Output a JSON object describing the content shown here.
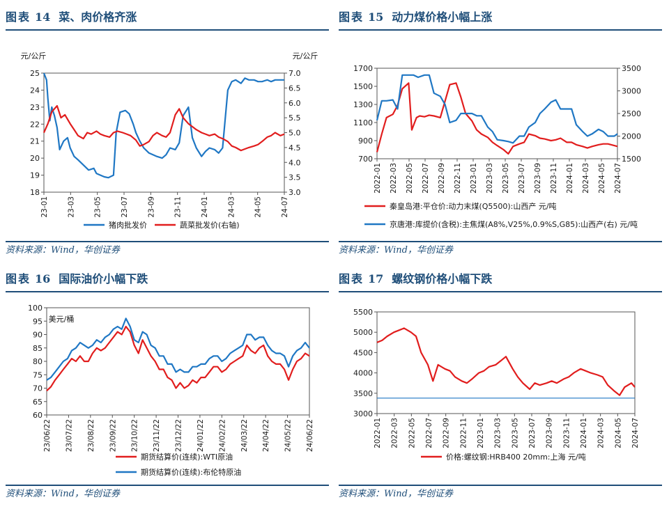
{
  "figures": [
    {
      "label": "图表",
      "number": "14",
      "title": "菜、肉价格齐涨",
      "source": "资料来源：Wind，华创证券",
      "chart_data": {
        "type": "line",
        "unit_left": "元/公斤",
        "unit_right": "元/公斤",
        "left_ticks": [
          "25",
          "24",
          "23",
          "22",
          "21",
          "20",
          "19",
          "18"
        ],
        "right_ticks": [
          "7.0",
          "6.5",
          "6.0",
          "5.5",
          "5.0",
          "4.5",
          "4.0",
          "3.5",
          "3.0"
        ],
        "x_ticks": [
          "23-01",
          "23-03",
          "23-05",
          "23-07",
          "23-09",
          "23-11",
          "24-01",
          "24-03",
          "24-05",
          "24-07"
        ],
        "ylim_left": [
          18,
          25
        ],
        "ylim_right": [
          3.0,
          7.0
        ],
        "series": [
          {
            "name": "猪肉批发价",
            "axis": "left",
            "color": "#1f77c4",
            "x": [
              0,
              0.2,
              0.3,
              0.45,
              0.6,
              0.8,
              1,
              1.2,
              1.5,
              1.8,
              2,
              2.3,
              2.6,
              3,
              3.4,
              3.8,
              4,
              4.3,
              4.6,
              4.9,
              5.3,
              5.5,
              5.8,
              6.2,
              6.5,
              6.8,
              7,
              7.3,
              7.6,
              8,
              8.3,
              8.6,
              9,
              9.3,
              9.6,
              10,
              10.3,
              10.6,
              11,
              11.3,
              11.6,
              12,
              12.3,
              12.6,
              13,
              13.3,
              13.6,
              14,
              14.3,
              14.6,
              15,
              15.3,
              15.6,
              16,
              16.3,
              16.6,
              17,
              17.3,
              17.6,
              18,
              18.3
            ],
            "y": [
              25.0,
              24.6,
              23.5,
              22.2,
              23.0,
              22.5,
              21.8,
              20.5,
              21.0,
              21.2,
              20.6,
              20.1,
              19.9,
              19.6,
              19.3,
              19.4,
              19.1,
              19.0,
              18.9,
              18.85,
              19.0,
              21.5,
              22.7,
              22.8,
              22.6,
              22.0,
              21.5,
              21.0,
              20.6,
              20.3,
              20.2,
              20.1,
              20.0,
              20.2,
              20.6,
              20.5,
              20.9,
              22.5,
              23.0,
              21.2,
              20.6,
              20.1,
              20.4,
              20.6,
              20.5,
              20.3,
              20.6,
              24.0,
              24.5,
              24.6,
              24.4,
              24.7,
              24.6,
              24.6,
              24.5,
              24.5,
              24.6,
              24.5,
              24.6,
              24.6,
              24.6
            ]
          },
          {
            "name": "蔬菜批发价(右轴)",
            "axis": "right",
            "color": "#e11d1d",
            "x": [
              0,
              0.3,
              0.6,
              1,
              1.3,
              1.6,
              2,
              2.3,
              2.6,
              3,
              3.3,
              3.6,
              4,
              4.3,
              4.6,
              5,
              5.3,
              5.6,
              6,
              6.3,
              6.6,
              7,
              7.3,
              7.6,
              8,
              8.3,
              8.6,
              9,
              9.3,
              9.6,
              10,
              10.3,
              10.6,
              11,
              11.3,
              11.6,
              12,
              12.3,
              12.6,
              13,
              13.3,
              13.6,
              14,
              14.3,
              14.6,
              15,
              15.3,
              15.6,
              16,
              16.3,
              16.6,
              17,
              17.3,
              17.6,
              18,
              18.3
            ],
            "y": [
              5.0,
              5.3,
              5.7,
              5.9,
              5.5,
              5.6,
              5.3,
              5.1,
              4.9,
              4.8,
              5.0,
              4.95,
              5.05,
              4.95,
              4.9,
              4.85,
              5.0,
              5.05,
              5.0,
              4.95,
              4.9,
              4.75,
              4.55,
              4.6,
              4.7,
              4.9,
              5.0,
              4.9,
              4.85,
              5.0,
              5.6,
              5.8,
              5.5,
              5.3,
              5.2,
              5.1,
              5.0,
              4.95,
              4.9,
              4.95,
              4.85,
              4.8,
              4.7,
              4.55,
              4.5,
              4.4,
              4.45,
              4.5,
              4.55,
              4.6,
              4.7,
              4.85,
              4.9,
              5.0,
              4.9,
              4.95
            ]
          }
        ]
      }
    },
    {
      "label": "图表",
      "number": "15",
      "title": "动力煤价格小幅上涨",
      "source": "资料来源：Wind，华创证券",
      "chart_data": {
        "type": "line",
        "left_ticks": [
          "1700",
          "1500",
          "1300",
          "1100",
          "900",
          "700"
        ],
        "right_ticks": [
          "3500",
          "3000",
          "2500",
          "2000",
          "1500"
        ],
        "x_ticks": [
          "2022-01",
          "2022-03",
          "2022-05",
          "2022-07",
          "2022-09",
          "2022-11",
          "2023-01",
          "2023-03",
          "2023-05",
          "2023-07",
          "2023-09",
          "2023-11",
          "2024-01",
          "2024-03",
          "2024-05",
          "2024-07"
        ],
        "ylim_left": [
          700,
          1800
        ],
        "ylim_right": [
          1500,
          3500
        ],
        "series": [
          {
            "name": "秦皇岛港:平仓价:动力末煤(Q5500):山西产 元/吨",
            "axis": "left",
            "color": "#e11d1d",
            "x": [
              0,
              0.3,
              0.6,
              1,
              1.3,
              1.6,
              2,
              2.2,
              2.5,
              2.7,
              3,
              3.3,
              3.6,
              4,
              4.3,
              4.6,
              5,
              5.3,
              5.6,
              6,
              6.3,
              6.6,
              7,
              7.3,
              7.6,
              8,
              8.3,
              8.6,
              9,
              9.3,
              9.6,
              10,
              10.3,
              10.6,
              11,
              11.3,
              11.6,
              12,
              12.3,
              12.6,
              13,
              13.3,
              13.6,
              14,
              14.3,
              14.6,
              15,
              15.2
            ],
            "y": [
              780,
              1000,
              1200,
              1240,
              1350,
              1550,
              1620,
              1050,
              1200,
              1220,
              1210,
              1230,
              1220,
              1200,
              1400,
              1600,
              1620,
              1450,
              1250,
              1160,
              1050,
              1000,
              960,
              900,
              860,
              810,
              760,
              850,
              880,
              900,
              1000,
              980,
              950,
              940,
              920,
              930,
              950,
              900,
              900,
              870,
              850,
              830,
              850,
              870,
              880,
              880,
              860,
              850
            ]
          },
          {
            "name": "京唐港:库提价(含税):主焦煤(A8%,V25%,0.9%S,G85):山西产(右) 元/吨",
            "axis": "right",
            "color": "#1f77c4",
            "x": [
              0,
              0.3,
              0.6,
              1,
              1.3,
              1.6,
              2,
              2.3,
              2.6,
              3,
              3.3,
              3.6,
              4,
              4.3,
              4.6,
              5,
              5.3,
              5.6,
              6,
              6.3,
              6.6,
              7,
              7.3,
              7.6,
              8,
              8.3,
              8.6,
              9,
              9.3,
              9.6,
              10,
              10.3,
              10.6,
              11,
              11.3,
              11.6,
              12,
              12.3,
              12.6,
              13,
              13.3,
              13.6,
              14,
              14.3,
              14.6,
              15,
              15.2
            ],
            "y": [
              2350,
              2780,
              2780,
              2800,
              2600,
              3350,
              3350,
              3350,
              3300,
              3350,
              3350,
              2950,
              2880,
              2700,
              2300,
              2350,
              2500,
              2500,
              2500,
              2450,
              2450,
              2200,
              2100,
              1920,
              1900,
              1880,
              1850,
              2000,
              2000,
              2200,
              2300,
              2500,
              2600,
              2750,
              2800,
              2600,
              2600,
              2600,
              2250,
              2100,
              2000,
              2050,
              2150,
              2100,
              2000,
              2000,
              2050
            ]
          }
        ]
      }
    },
    {
      "label": "图表",
      "number": "16",
      "title": "国际油价小幅下跌",
      "source": "资料来源：Wind，华创证券",
      "chart_data": {
        "type": "line",
        "unit_left": "美元/桶",
        "left_ticks": [
          "100",
          "95",
          "90",
          "85",
          "80",
          "75",
          "70",
          "65",
          "60"
        ],
        "x_ticks": [
          "23/06/22",
          "23/07/22",
          "23/08/22",
          "23/09/22",
          "23/10/22",
          "23/11/22",
          "23/12/22",
          "24/01/22",
          "24/02/22",
          "24/03/22",
          "24/04/22",
          "24/05/22",
          "24/06/22"
        ],
        "ylim_left": [
          60,
          100
        ],
        "series": [
          {
            "name": "期货结算价(连续):WTI原油",
            "axis": "left",
            "color": "#e11d1d",
            "x": [
              0,
              0.2,
              0.4,
              0.6,
              0.8,
              1,
              1.2,
              1.4,
              1.6,
              1.8,
              2,
              2.2,
              2.4,
              2.6,
              2.8,
              3,
              3.2,
              3.4,
              3.6,
              3.8,
              4,
              4.2,
              4.4,
              4.6,
              4.8,
              5,
              5.2,
              5.4,
              5.6,
              5.8,
              6,
              6.2,
              6.4,
              6.6,
              6.8,
              7,
              7.2,
              7.4,
              7.6,
              7.8,
              8,
              8.2,
              8.4,
              8.6,
              8.8,
              9,
              9.2,
              9.4,
              9.6,
              9.8,
              10,
              10.2,
              10.4,
              10.6,
              10.8,
              11,
              11.2,
              11.4,
              11.6,
              11.8,
              12,
              12.2,
              12.4,
              12.6
            ],
            "y": [
              69,
              70.5,
              73,
              75,
              77,
              79,
              81,
              80,
              82,
              80,
              80,
              83,
              85,
              84,
              85,
              87,
              89,
              91,
              90,
              93,
              91,
              86,
              83,
              88,
              85,
              82,
              80,
              77,
              77,
              74,
              73,
              70,
              72,
              70,
              71,
              73,
              72,
              74,
              74,
              76,
              78,
              78,
              76,
              77,
              79,
              80,
              81,
              82,
              86,
              84,
              83,
              85,
              86,
              82,
              80,
              79,
              79,
              77,
              73,
              77,
              80,
              81,
              83,
              82
            ]
          },
          {
            "name": "期货结算价(连续):布伦特原油",
            "axis": "left",
            "color": "#1f77c4",
            "x": [
              0,
              0.2,
              0.4,
              0.6,
              0.8,
              1,
              1.2,
              1.4,
              1.6,
              1.8,
              2,
              2.2,
              2.4,
              2.6,
              2.8,
              3,
              3.2,
              3.4,
              3.6,
              3.8,
              4,
              4.2,
              4.4,
              4.6,
              4.8,
              5,
              5.2,
              5.4,
              5.6,
              5.8,
              6,
              6.2,
              6.4,
              6.6,
              6.8,
              7,
              7.2,
              7.4,
              7.6,
              7.8,
              8,
              8.2,
              8.4,
              8.6,
              8.8,
              9,
              9.2,
              9.4,
              9.6,
              9.8,
              10,
              10.2,
              10.4,
              10.6,
              10.8,
              11,
              11.2,
              11.4,
              11.6,
              11.8,
              12,
              12.2,
              12.4,
              12.6
            ],
            "y": [
              73,
              74,
              76,
              78,
              80,
              81,
              84,
              85,
              87,
              86,
              85,
              86,
              88,
              87,
              89,
              90,
              92,
              93,
              92,
              96,
              93,
              88,
              87,
              91,
              90,
              86,
              85,
              82,
              82,
              79,
              79,
              76,
              77,
              76,
              76,
              78,
              78,
              79,
              79,
              81,
              82,
              82,
              80,
              81,
              83,
              84,
              85,
              86,
              90,
              90,
              88,
              89,
              89,
              86,
              84,
              83,
              83,
              82,
              78,
              82,
              84,
              85,
              87,
              85
            ]
          }
        ]
      }
    },
    {
      "label": "图表",
      "number": "17",
      "title": "螺纹钢价格小幅下跌",
      "source": "资料来源：Wind，华创证券",
      "chart_data": {
        "type": "line",
        "left_ticks": [
          "5500",
          "5000",
          "4500",
          "4000",
          "3500",
          "3000"
        ],
        "x_ticks": [
          "2022-01",
          "2022-03",
          "2022-05",
          "2022-07",
          "2022-09",
          "2022-11",
          "2023-01",
          "2023-03",
          "2023-05",
          "2023-07",
          "2023-09",
          "2023-11",
          "2024-01",
          "2024-03",
          "2024-05",
          "2024-07"
        ],
        "ylim_left": [
          3000,
          5500
        ],
        "hline": 3380,
        "series": [
          {
            "name": "价格:螺纹钢:HRB400 20mm:上海 元/吨",
            "axis": "left",
            "color": "#e11d1d",
            "x": [
              0,
              0.3,
              0.6,
              1,
              1.3,
              1.6,
              2,
              2.3,
              2.6,
              3,
              3.3,
              3.6,
              4,
              4.3,
              4.6,
              5,
              5.3,
              5.6,
              6,
              6.3,
              6.6,
              7,
              7.3,
              7.6,
              8,
              8.3,
              8.6,
              9,
              9.3,
              9.6,
              10,
              10.3,
              10.6,
              11,
              11.3,
              11.6,
              12,
              12.3,
              12.6,
              13,
              13.3,
              13.6,
              14,
              14.3,
              14.6,
              15,
              15.2
            ],
            "y": [
              4750,
              4800,
              4900,
              5000,
              5050,
              5100,
              5000,
              4900,
              4500,
              4200,
              3800,
              4200,
              4100,
              4050,
              3900,
              3800,
              3750,
              3850,
              4000,
              4050,
              4150,
              4200,
              4300,
              4400,
              4100,
              3900,
              3750,
              3600,
              3750,
              3700,
              3750,
              3800,
              3750,
              3850,
              3900,
              4000,
              4100,
              4050,
              4000,
              3950,
              3900,
              3700,
              3550,
              3450,
              3650,
              3750,
              3650
            ]
          }
        ]
      }
    }
  ]
}
